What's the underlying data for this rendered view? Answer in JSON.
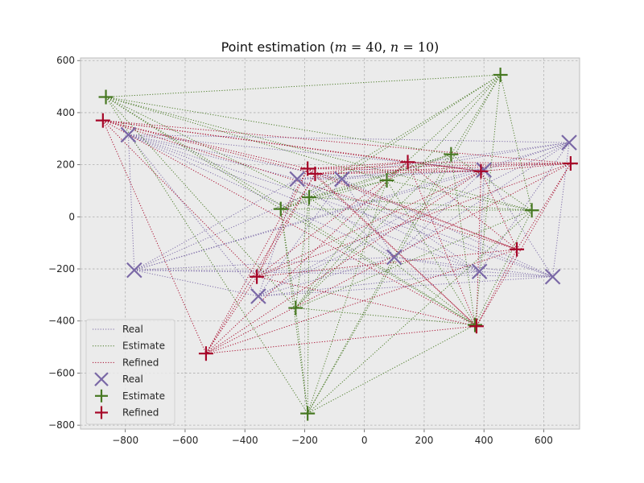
{
  "chart_data": {
    "type": "scatter",
    "title": {
      "prefix": "Point estimation (",
      "m_var": "m",
      "m_value": " = 40",
      "sep": ", ",
      "n_var": "n",
      "n_value": " = 10",
      "suffix": ")"
    },
    "xlabel": "",
    "ylabel": "",
    "xlim": [
      -950,
      720
    ],
    "ylim": [
      -815,
      610
    ],
    "xticks": [
      -800,
      -600,
      -400,
      -200,
      0,
      200,
      400,
      600
    ],
    "yticks": [
      -800,
      -600,
      -400,
      -200,
      0,
      200,
      400,
      600
    ],
    "grid": true,
    "legend_position": "lower-left",
    "colors": {
      "background": "#ebebeb",
      "grid": "#b0b0b0",
      "real": "#7a68a6",
      "estimate": "#467821",
      "refined": "#a60628"
    },
    "series": [
      {
        "name": "Real",
        "key": "real",
        "marker": "x",
        "points": [
          [
            -790,
            315
          ],
          [
            -770,
            -205
          ],
          [
            -355,
            -305
          ],
          [
            -225,
            145
          ],
          [
            -75,
            145
          ],
          [
            100,
            -155
          ],
          [
            385,
            -210
          ],
          [
            400,
            180
          ],
          [
            630,
            -230
          ],
          [
            685,
            285
          ]
        ]
      },
      {
        "name": "Estimate",
        "key": "estimate",
        "marker": "+",
        "points": [
          [
            -865,
            460
          ],
          [
            455,
            545
          ],
          [
            -280,
            30
          ],
          [
            -185,
            75
          ],
          [
            75,
            140
          ],
          [
            290,
            240
          ],
          [
            560,
            25
          ],
          [
            -230,
            -350
          ],
          [
            370,
            -415
          ],
          [
            -190,
            -755
          ]
        ]
      },
      {
        "name": "Refined",
        "key": "refined",
        "marker": "+",
        "points": [
          [
            -875,
            370
          ],
          [
            -190,
            185
          ],
          [
            -165,
            165
          ],
          [
            145,
            210
          ],
          [
            390,
            175
          ],
          [
            690,
            205
          ],
          [
            510,
            -125
          ],
          [
            -360,
            -230
          ],
          [
            375,
            -420
          ],
          [
            -530,
            -525
          ]
        ]
      }
    ],
    "legend": [
      {
        "label": "Real",
        "key": "real",
        "kind": "line"
      },
      {
        "label": "Estimate",
        "key": "estimate",
        "kind": "line"
      },
      {
        "label": "Refined",
        "key": "refined",
        "kind": "line"
      },
      {
        "label": "Real",
        "key": "real",
        "kind": "x"
      },
      {
        "label": "Estimate",
        "key": "estimate",
        "kind": "plus"
      },
      {
        "label": "Refined",
        "key": "refined",
        "kind": "plus"
      }
    ]
  }
}
